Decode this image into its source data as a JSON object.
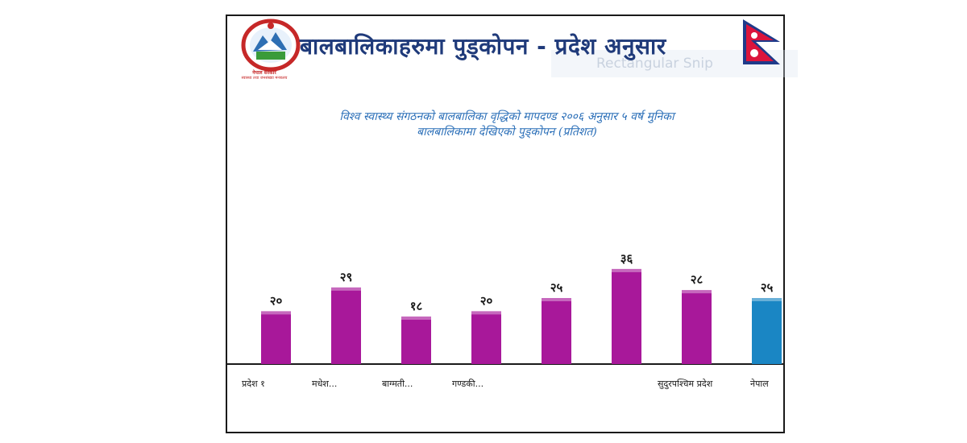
{
  "header": {
    "title": "बालबालिकाहरुमा पुड्कोपन - प्रदेश  अनुसार",
    "emblem_line1": "नेपाल सरकार",
    "emblem_line2": "स्वास्थ्य तथा जनसंख्या मन्त्रालय",
    "ghost_label": "Rectangular Snip"
  },
  "chart_data": {
    "type": "bar",
    "subtitle_lines": [
      "विश्व स्वास्थ्य संगठनको बालबालिका वृद्धिको मापदण्ड २००६ अनुसार ५ वर्ष मुनिका",
      "बालबालिकामा देखिएको पुड्कोपन (प्रतिशत)"
    ],
    "categories": [
      "प्रदेश १",
      "मधेश...",
      "बाग्मती...",
      "गण्डकी...",
      "",
      "",
      "सुदुरपश्चिम प्रदेश",
      "नेपाल"
    ],
    "values": [
      20,
      29,
      18,
      20,
      25,
      36,
      28,
      25
    ],
    "value_labels": [
      "२०",
      "२९",
      "१८",
      "२०",
      "२५",
      "३६",
      "२८",
      "२५"
    ],
    "colors": [
      "#a8189a",
      "#a8189a",
      "#a8189a",
      "#a8189a",
      "#a8189a",
      "#a8189a",
      "#a8189a",
      "#1a86c4"
    ],
    "ylim": [
      0,
      100
    ],
    "grid": false,
    "legend": "none"
  }
}
